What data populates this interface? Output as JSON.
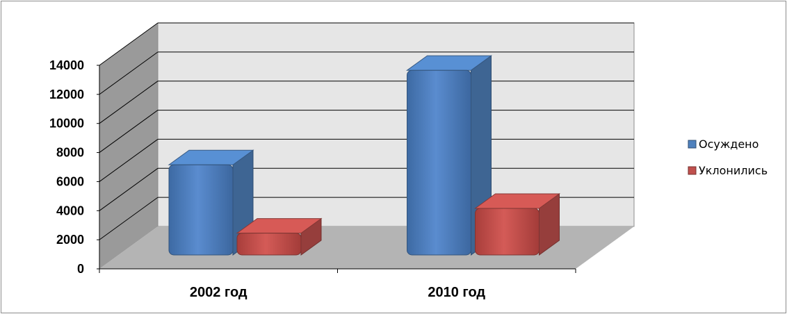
{
  "chart_data": {
    "type": "bar",
    "categories": [
      "2002 год",
      "2010 год"
    ],
    "series": [
      {
        "name": "Осуждено",
        "values": [
          6200,
          12700
        ]
      },
      {
        "name": "Уклонились",
        "values": [
          1500,
          3200
        ]
      }
    ],
    "ylim": [
      0,
      14000
    ],
    "yticks": [
      "0",
      "2000",
      "4000",
      "6000",
      "8000",
      "10000",
      "12000",
      "14000"
    ],
    "legend_position": "right",
    "grid": true,
    "colors": {
      "series": [
        "#4f81bd",
        "#c0504d"
      ],
      "back_wall": "#e6e6e6",
      "side_wall": "#9a9a9a",
      "floor": "#b4b4b4",
      "gridline": "#000000"
    }
  }
}
